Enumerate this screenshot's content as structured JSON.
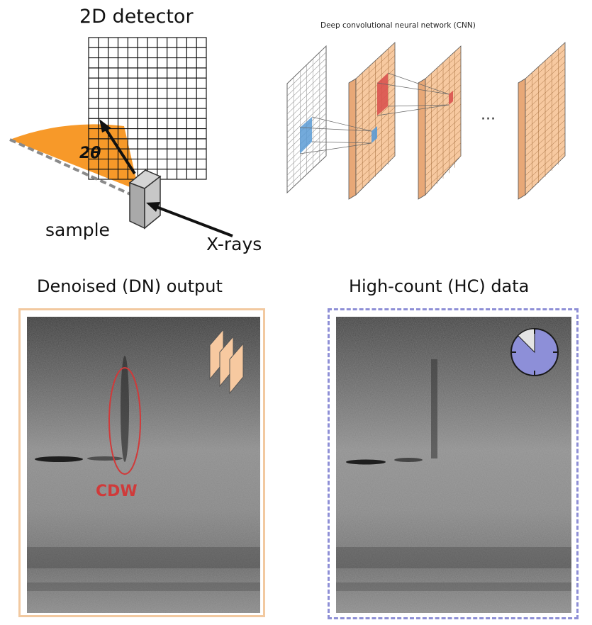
{
  "setup": {
    "detector_title": "2D detector",
    "angle_label": "2θ",
    "sample_label": "sample",
    "xrays_label": "X-rays"
  },
  "cnn": {
    "title": "Deep convolutional neural network (CNN)",
    "ellipsis": "···"
  },
  "panels": {
    "dn_title": "Denoised (DN) output",
    "hc_title": "High-count (HC) data",
    "cdw_label": "CDW"
  },
  "colors": {
    "feature_map": "#f7c9a0",
    "beam_fan": "#f7941d",
    "cdw_red": "#d03a3a",
    "dn_border": "#f2c9a0",
    "hc_border": "#8e8fd6",
    "clock_fill": "#8d8fd8",
    "input_patch_blue": "#5b9bd5",
    "filter_red": "#d9534f"
  },
  "clock": {
    "filled_fraction": 0.875
  }
}
